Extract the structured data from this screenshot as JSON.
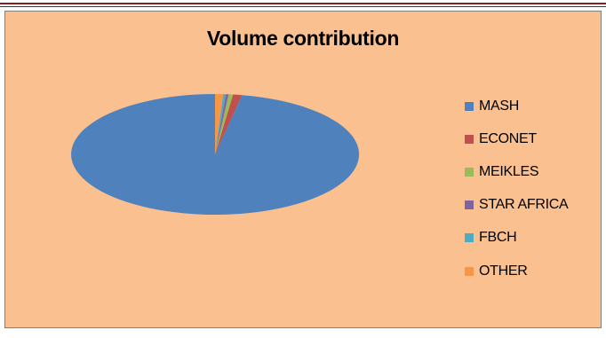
{
  "chart_data": {
    "type": "pie",
    "title": "Volume contribution",
    "categories": [
      "MASH",
      "ECONET",
      "MEIKLES",
      "STAR AFRICA",
      "FBCH",
      "OTHER"
    ],
    "values": [
      97.0,
      1.0,
      0.5,
      0.3,
      0.3,
      0.9
    ],
    "colors": [
      "#4f81bd",
      "#c0504d",
      "#9bbb59",
      "#8064a2",
      "#4bacc6",
      "#f79646"
    ],
    "legend_position": "right",
    "style": "3d"
  }
}
